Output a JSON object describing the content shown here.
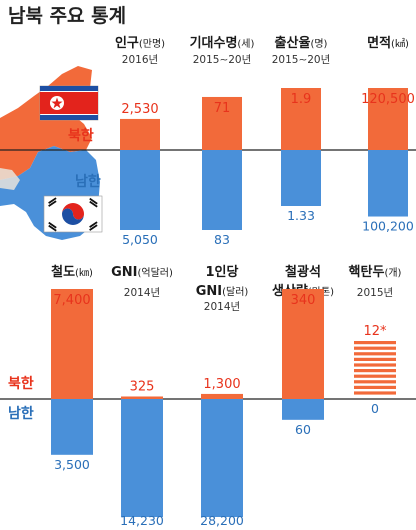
{
  "title": "남북 주요 통계",
  "legend": {
    "north": "북한",
    "south": "남한"
  },
  "colors": {
    "north": "#f26a3a",
    "south": "#4a90d9",
    "north_text": "#e8331c",
    "south_text": "#2a6fb8"
  },
  "chart_data": [
    {
      "type": "bar",
      "categories": [
        {
          "name": "인구",
          "unit": "(만명)",
          "sub": "2016년"
        },
        {
          "name": "기대수명",
          "unit": "(세)",
          "sub": "2015∼20년"
        },
        {
          "name": "출산율",
          "unit": "(명)",
          "sub": "2015∼20년"
        },
        {
          "name": "면적",
          "unit": "(㎢)",
          "sub": ""
        }
      ],
      "series": [
        {
          "name": "북한",
          "values": [
            2530,
            71,
            1.9,
            120500
          ],
          "labels": [
            "2,530",
            "71",
            "1.9",
            "120,500"
          ]
        },
        {
          "name": "남한",
          "values": [
            5050,
            83,
            1.33,
            100200
          ],
          "labels": [
            "5,050",
            "83",
            "1.33",
            "100,200"
          ]
        }
      ]
    },
    {
      "type": "bar",
      "categories": [
        {
          "name": "철도",
          "unit": "(㎞)",
          "sub": ""
        },
        {
          "name": "GNI",
          "unit": "(억달러)",
          "sub": "2014년"
        },
        {
          "name": "1인당",
          "name2": "GNI",
          "unit": "(달러)",
          "sub": "2014년"
        },
        {
          "name": "철광석",
          "name2": "생산량",
          "unit": "(만톤)",
          "sub": "2014년"
        },
        {
          "name": "핵탄두",
          "unit": "(개)",
          "sub": "2015년"
        }
      ],
      "series": [
        {
          "name": "북한",
          "values": [
            7400,
            325,
            1300,
            340,
            12
          ],
          "labels": [
            "7,400",
            "325",
            "1,300",
            "340",
            "12*"
          ]
        },
        {
          "name": "남한",
          "values": [
            3500,
            14230,
            28200,
            60,
            0
          ],
          "labels": [
            "3,500",
            "14,230",
            "28,200",
            "60",
            "0"
          ]
        }
      ]
    }
  ]
}
